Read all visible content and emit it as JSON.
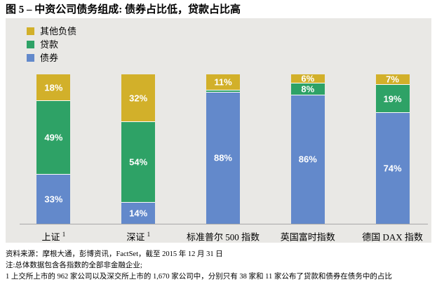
{
  "title": {
    "normal": "图 5 – 中资公司债务组成: ",
    "bold": "债券占比低，贷款占比高"
  },
  "legend": {
    "items": [
      {
        "label": "其他负债",
        "color": "#d2b02a"
      },
      {
        "label": "贷款",
        "color": "#2ea266"
      },
      {
        "label": "债券",
        "color": "#6389cb"
      }
    ]
  },
  "chart_data": {
    "type": "bar",
    "stacked": true,
    "unit": "%",
    "title": "图 5 – 中资公司债务组成: 债券占比低，贷款占比高",
    "categories": [
      "上证",
      "深证",
      "标准普尔 500 指数",
      "英国富时指数",
      "德国 DAX 指数"
    ],
    "category_superscripts": [
      "1",
      "1",
      "",
      "",
      ""
    ],
    "series": [
      {
        "name": "债券",
        "color": "#6389cb",
        "values": [
          33,
          14,
          88,
          86,
          74
        ]
      },
      {
        "name": "贷款",
        "color": "#2ea266",
        "values": [
          49,
          54,
          1,
          8,
          19
        ]
      },
      {
        "name": "其他负债",
        "color": "#d2b02a",
        "values": [
          18,
          32,
          11,
          6,
          7
        ]
      }
    ],
    "ylim": [
      0,
      100
    ],
    "grid": false,
    "legend_position": "top-left",
    "plot_background": "#e9e8e5",
    "axis_line_color": "#a8a8a8"
  },
  "footer": {
    "lines": [
      "资料来源：摩根大通，彭博资讯，FactSet，截至 2015 年 12 月 31 日",
      "注:总体数据包含各指数的全部非金融企业;",
      "1 上交所上市的 962 家公司以及深交所上市的 1,670 家公司中，分别只有 38 家和 11 家公布了贷款和债券在债务中的占比"
    ]
  }
}
